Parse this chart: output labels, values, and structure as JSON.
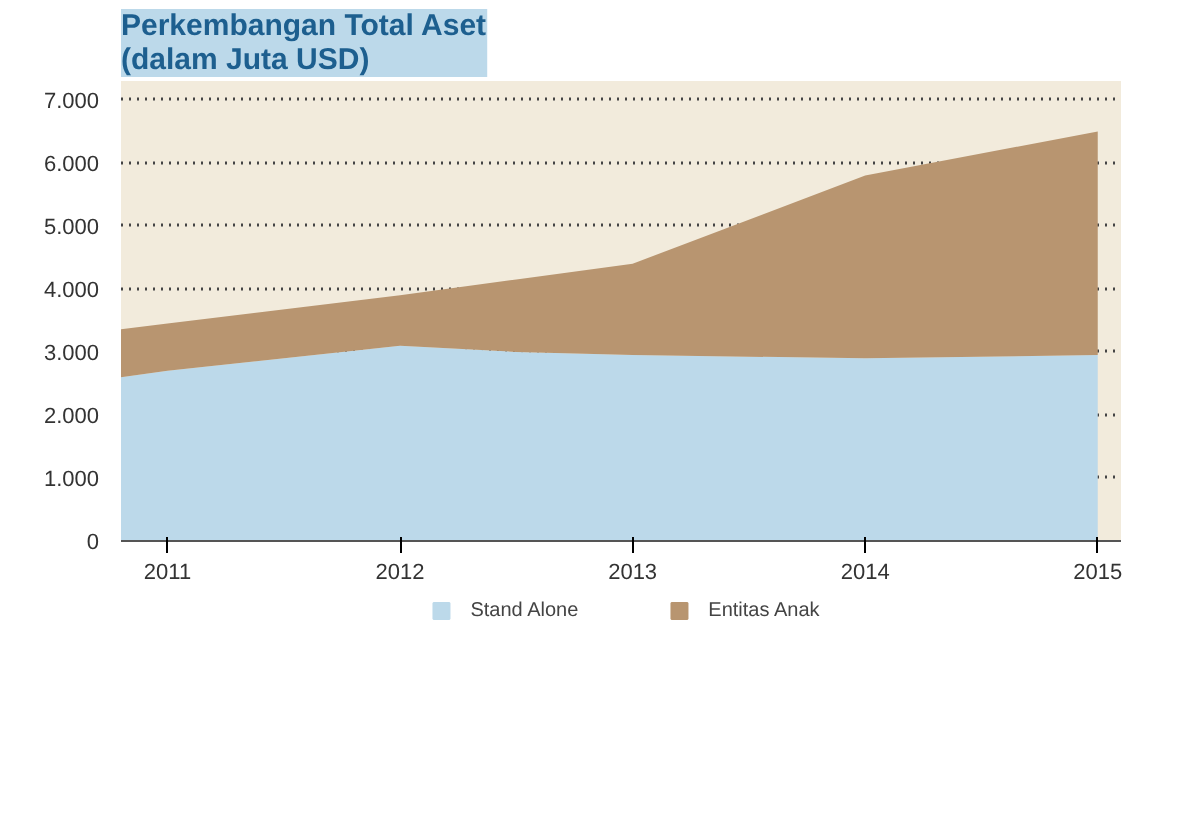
{
  "chart_data": {
    "type": "area",
    "stacked": true,
    "title": "Perkembangan Total Aset\n(dalam Juta USD)",
    "x": [
      2010.8,
      2011,
      2012,
      2012.5,
      2013,
      2014,
      2015
    ],
    "series": [
      {
        "name": "Stand Alone",
        "color": "#bcd9ea",
        "values": [
          2600,
          2700,
          3100,
          3000,
          2950,
          2900,
          2950
        ]
      },
      {
        "name": "Entitas Anak",
        "color": "#b89570",
        "values": [
          760,
          750,
          800,
          1150,
          1450,
          2900,
          3550
        ]
      }
    ],
    "xlim": [
      2010.8,
      2015.1
    ],
    "xticks": [
      2011,
      2012,
      2013,
      2014,
      2015
    ],
    "ylim": [
      0,
      7300
    ],
    "yticks": [
      {
        "value": 0,
        "label": "0"
      },
      {
        "value": 1000,
        "label": "1.000"
      },
      {
        "value": 2000,
        "label": "2.000"
      },
      {
        "value": 3000,
        "label": "3.000"
      },
      {
        "value": 4000,
        "label": "4.000"
      },
      {
        "value": 5000,
        "label": "5.000"
      },
      {
        "value": 6000,
        "label": "6.000"
      },
      {
        "value": 7000,
        "label": "7.000"
      }
    ],
    "grid": "y",
    "legend": "bottom"
  }
}
